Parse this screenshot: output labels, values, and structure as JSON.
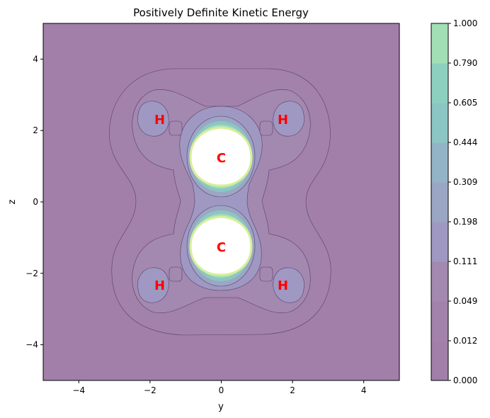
{
  "chart_data": {
    "type": "heatmap",
    "title": "Positively Definite Kinetic Energy",
    "xlabel": "y",
    "ylabel": "z",
    "xlim": [
      -5,
      5
    ],
    "ylim": [
      -5,
      5
    ],
    "x_ticks": [
      -4,
      -2,
      0,
      2,
      4
    ],
    "y_ticks": [
      -4,
      -2,
      0,
      2,
      4
    ],
    "x_tick_labels": [
      "−4",
      "−2",
      "0",
      "2",
      "4"
    ],
    "y_tick_labels": [
      "−4",
      "−2",
      "0",
      "2",
      "4"
    ],
    "colorbar": {
      "levels": [
        0.0,
        0.012,
        0.049,
        0.111,
        0.198,
        0.309,
        0.444,
        0.605,
        0.79,
        1.0
      ],
      "level_labels": [
        "0.000",
        "0.012",
        "0.049",
        "0.111",
        "0.198",
        "0.309",
        "0.444",
        "0.605",
        "0.790",
        "1.000"
      ],
      "colors": [
        "#a17fa9",
        "#a282ab",
        "#a388b0",
        "#9f98c2",
        "#9ba6c4",
        "#93b4c6",
        "#8cc6c4",
        "#8ed0c0",
        "#a3dfb4",
        "#d9ee98"
      ]
    },
    "atoms": [
      {
        "label": "C",
        "y": 0.0,
        "z": 1.25
      },
      {
        "label": "C",
        "y": 0.0,
        "z": -1.25
      },
      {
        "label": "H",
        "y": -1.73,
        "z": 2.32
      },
      {
        "label": "H",
        "y": 1.73,
        "z": 2.32
      },
      {
        "label": "H",
        "y": -1.73,
        "z": -2.32
      },
      {
        "label": "H",
        "y": 1.73,
        "z": -2.32
      }
    ],
    "atom_label_color": "#ff0000",
    "grid": false
  }
}
